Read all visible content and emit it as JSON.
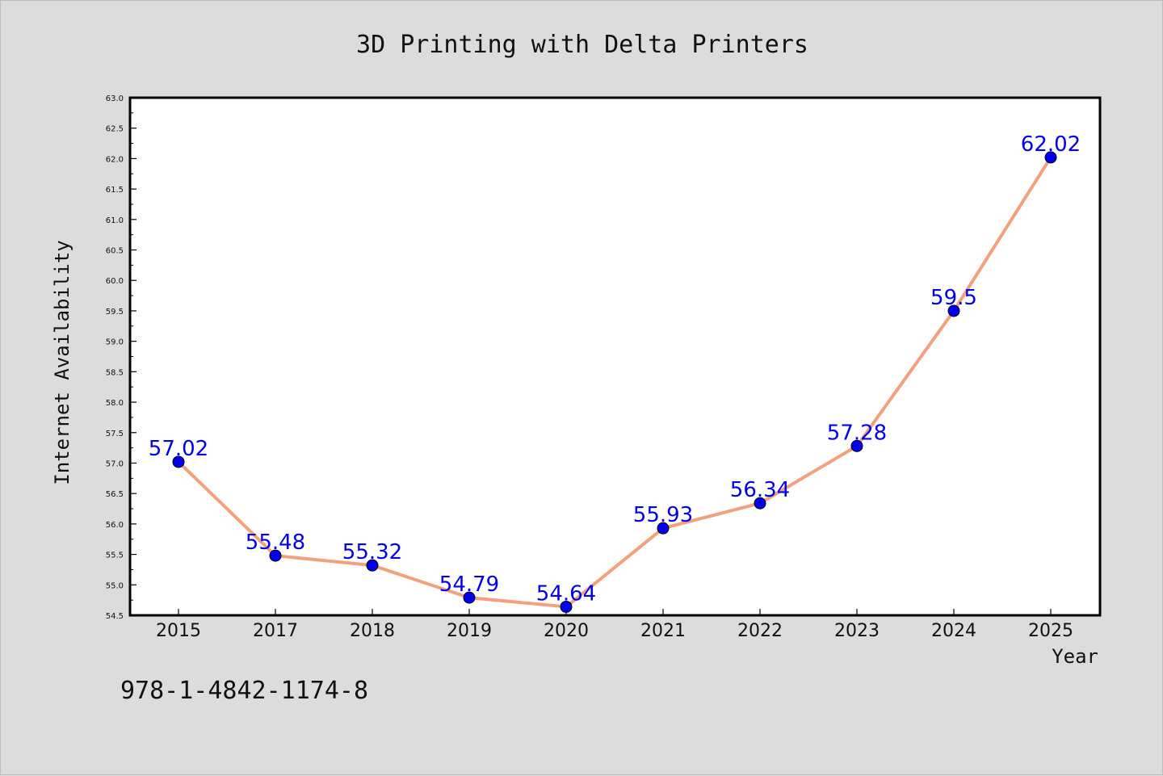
{
  "chart_data": {
    "type": "line",
    "title": "3D Printing with Delta Printers",
    "xlabel": "Year",
    "ylabel": "Internet Availability",
    "categories": [
      "2015",
      "2017",
      "2018",
      "2019",
      "2020",
      "2021",
      "2022",
      "2023",
      "2024",
      "2025"
    ],
    "series": [
      {
        "values": [
          57.02,
          55.48,
          55.32,
          54.79,
          54.64,
          55.93,
          56.34,
          57.28,
          59.5,
          62.02
        ]
      }
    ],
    "data_labels": [
      "57.02",
      "55.48",
      "55.32",
      "54.79",
      "54.64",
      "55.93",
      "56.34",
      "57.28",
      "59.5",
      "62.02"
    ],
    "ylim": [
      54.5,
      63.0
    ],
    "yticks": [
      "54.5",
      "55.0",
      "55.5",
      "56.0",
      "56.5",
      "57.0",
      "57.5",
      "58.0",
      "58.5",
      "59.0",
      "59.5",
      "60.0",
      "60.5",
      "61.0",
      "61.5",
      "62.0",
      "62.5",
      "63.0"
    ],
    "grid": false,
    "line_color": "#f4a07c",
    "marker_color": "#0000ee",
    "label_color": "#0000ee",
    "background": "#dcdcdc",
    "plot_background": "#ffffff"
  },
  "footer": {
    "isbn": "978-1-4842-1174-8"
  }
}
